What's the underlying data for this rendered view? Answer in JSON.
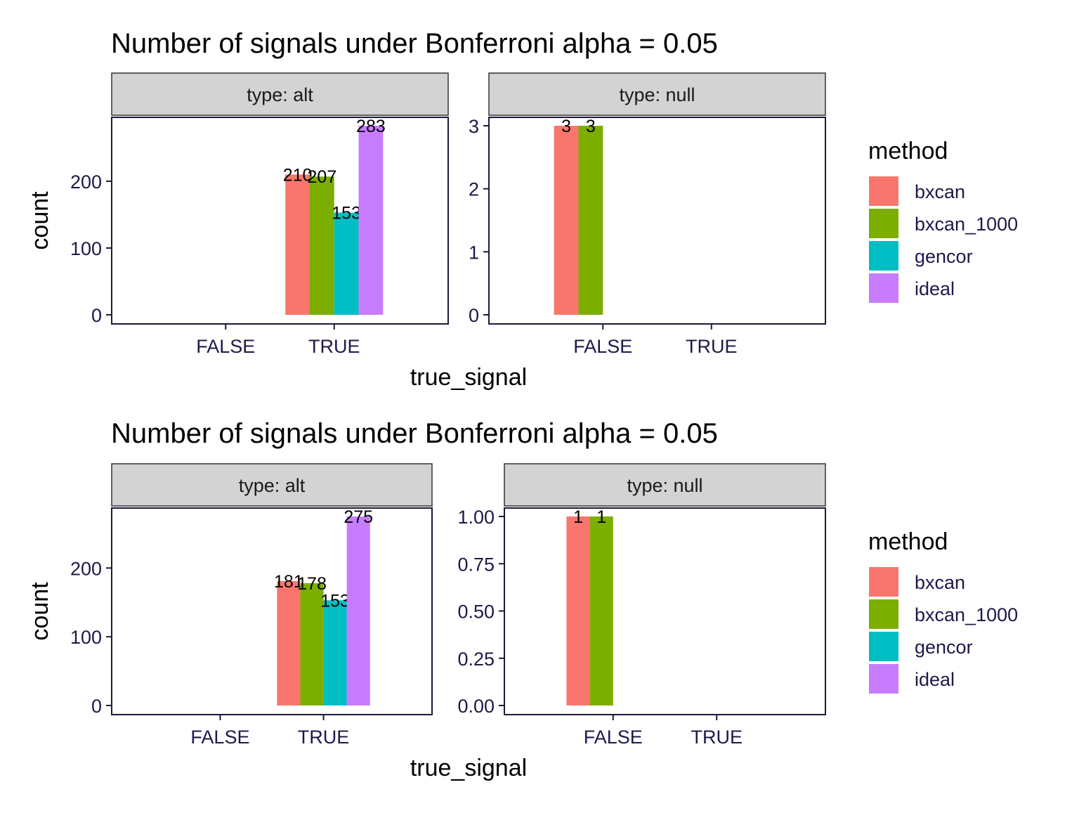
{
  "chart_data": [
    {
      "type": "bar",
      "title": "Number of signals under Bonferroni alpha = 0.05",
      "xlabel": "true_signal",
      "ylabel": "count",
      "facet_label_prefix": "type: ",
      "categories": [
        "FALSE",
        "TRUE"
      ],
      "legend": {
        "title": "method",
        "placement": "right"
      },
      "methods": [
        "bxcan",
        "bxcan_1000",
        "gencor",
        "ideal"
      ],
      "colors": {
        "bxcan": "#F8766D",
        "bxcan_1000": "#7CAE00",
        "gencor": "#00BFC4",
        "ideal": "#C77CFF"
      },
      "panels": [
        {
          "facet": "alt",
          "ylim": [
            0,
            283
          ],
          "yticks": [
            0,
            100,
            200
          ],
          "ytick_labels": [
            "0",
            "100",
            "200"
          ],
          "bars": [
            {
              "category": "TRUE",
              "method": "bxcan",
              "value": 210
            },
            {
              "category": "TRUE",
              "method": "bxcan_1000",
              "value": 207
            },
            {
              "category": "TRUE",
              "method": "gencor",
              "value": 153
            },
            {
              "category": "TRUE",
              "method": "ideal",
              "value": 283
            }
          ]
        },
        {
          "facet": "null",
          "ylim": [
            0,
            3
          ],
          "yticks": [
            0,
            1,
            2,
            3
          ],
          "ytick_labels": [
            "0",
            "1",
            "2",
            "3"
          ],
          "bars": [
            {
              "category": "FALSE",
              "method": "bxcan",
              "value": 3
            },
            {
              "category": "FALSE",
              "method": "bxcan_1000",
              "value": 3
            }
          ]
        }
      ]
    },
    {
      "type": "bar",
      "title": "Number of signals under Bonferroni alpha = 0.05",
      "xlabel": "true_signal",
      "ylabel": "count",
      "facet_label_prefix": "type: ",
      "categories": [
        "FALSE",
        "TRUE"
      ],
      "legend": {
        "title": "method",
        "placement": "right"
      },
      "methods": [
        "bxcan",
        "bxcan_1000",
        "gencor",
        "ideal"
      ],
      "colors": {
        "bxcan": "#F8766D",
        "bxcan_1000": "#7CAE00",
        "gencor": "#00BFC4",
        "ideal": "#C77CFF"
      },
      "panels": [
        {
          "facet": "alt",
          "ylim": [
            0,
            275
          ],
          "yticks": [
            0,
            100,
            200
          ],
          "ytick_labels": [
            "0",
            "100",
            "200"
          ],
          "bars": [
            {
              "category": "TRUE",
              "method": "bxcan",
              "value": 181
            },
            {
              "category": "TRUE",
              "method": "bxcan_1000",
              "value": 178
            },
            {
              "category": "TRUE",
              "method": "gencor",
              "value": 153
            },
            {
              "category": "TRUE",
              "method": "ideal",
              "value": 275
            }
          ]
        },
        {
          "facet": "null",
          "ylim": [
            0,
            1
          ],
          "yticks": [
            0,
            0.25,
            0.5,
            0.75,
            1
          ],
          "ytick_labels": [
            "0.00",
            "0.25",
            "0.50",
            "0.75",
            "1.00"
          ],
          "bars": [
            {
              "category": "FALSE",
              "method": "bxcan",
              "value": 1
            },
            {
              "category": "FALSE",
              "method": "bxcan_1000",
              "value": 1
            }
          ]
        }
      ]
    }
  ]
}
